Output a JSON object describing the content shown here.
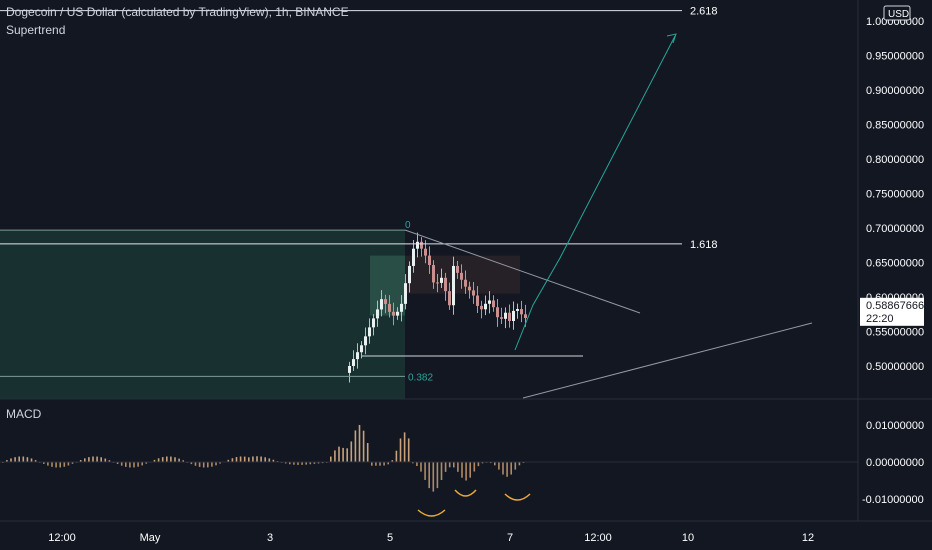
{
  "header": {
    "title": "Dogecoin / US Dollar (calculated by TradingView), 1h, BINANCE",
    "indicator": "Supertrend"
  },
  "currency_badge": "USD",
  "price_label": {
    "value": "0.58867666",
    "countdown": "22:20"
  },
  "colors": {
    "background": "#131722",
    "up": "#26a69a",
    "down": "#ef5350",
    "hist_up": "#c8a27a",
    "hist_down": "#c8a27a",
    "text": "#d1d4dc",
    "axis_text": "#ffffff",
    "zone_fill": "#1b3a36",
    "projection": "#26a69a",
    "trendline": "#9598a1",
    "swing_marker": "#e9a83a"
  },
  "chart_data": [
    {
      "type": "candlestick",
      "title": "Dogecoin / US Dollar (calculated by TradingView), 1h, BINANCE",
      "indicator": "Supertrend",
      "x_ticks": [
        "12:00",
        "May",
        "3",
        "5",
        "7",
        "12:00",
        "10",
        "12"
      ],
      "y_ticks": [
        "1.00000000",
        "0.95000000",
        "0.90000000",
        "0.85000000",
        "0.80000000",
        "0.75000000",
        "0.70000000",
        "0.65000000",
        "0.60000000",
        "0.55000000",
        "0.50000000"
      ],
      "ylim": [
        0.46,
        1.02
      ],
      "fib_levels": [
        {
          "label": "2.618",
          "price": 1.015
        },
        {
          "label": "1.618",
          "price": 0.677
        },
        {
          "label": "0.382",
          "price": 0.485
        },
        {
          "label": "0",
          "price": 0.697
        }
      ],
      "last_price": 0.58867666
    },
    {
      "type": "bar",
      "title": "MACD",
      "y_ticks": [
        "0.01000000",
        "0.00000000",
        "-0.01000000"
      ],
      "ylim": [
        -0.0135,
        0.0135
      ]
    }
  ]
}
